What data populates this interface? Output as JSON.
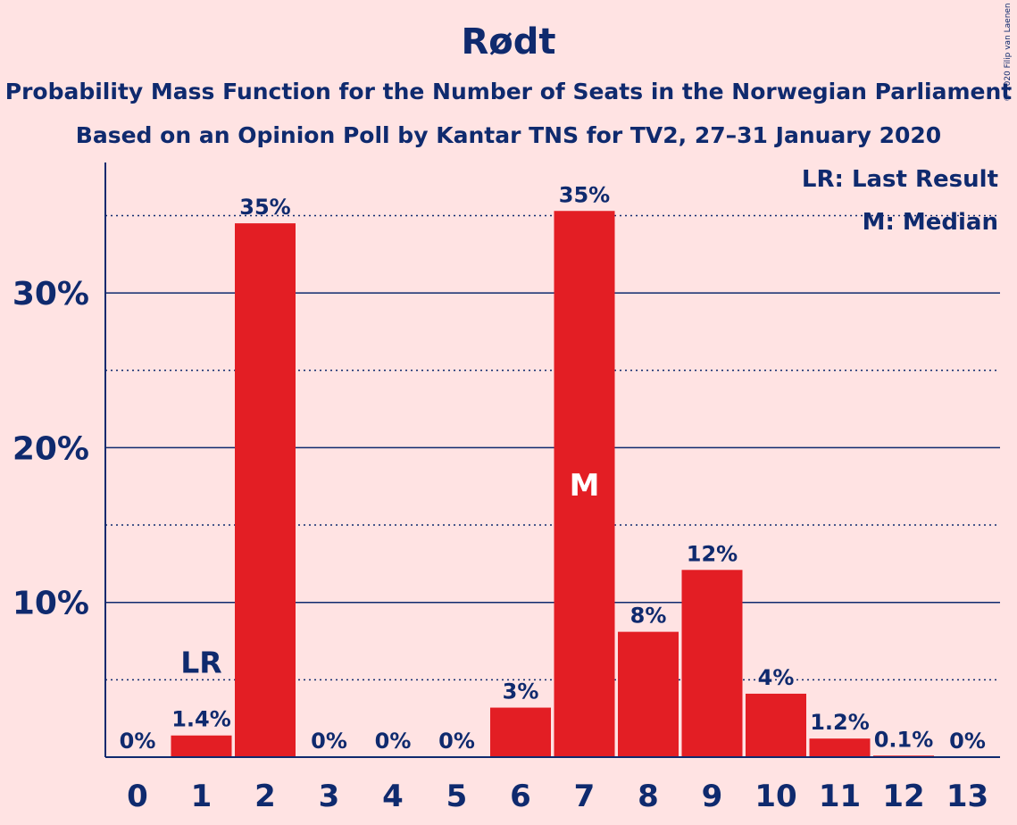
{
  "chart_data": {
    "type": "bar",
    "title": "Rødt",
    "subtitle_lines": [
      "Probability Mass Function for the Number of Seats in the Norwegian Parliament",
      "Based on an Opinion Poll by Kantar TNS for TV2, 27–31 January 2020"
    ],
    "copyright": "© 2020 Filip van Laenen",
    "categories": [
      "0",
      "1",
      "2",
      "3",
      "4",
      "5",
      "6",
      "7",
      "8",
      "9",
      "10",
      "11",
      "12",
      "13"
    ],
    "values": [
      0,
      1.4,
      34.5,
      0,
      0,
      0,
      3.2,
      35.3,
      8.1,
      12.1,
      4.1,
      1.2,
      0.1,
      0
    ],
    "value_labels": [
      "0%",
      "1.4%",
      "35%",
      "0%",
      "0%",
      "0%",
      "3%",
      "35%",
      "8%",
      "12%",
      "4%",
      "1.2%",
      "0.1%",
      "0%"
    ],
    "y_ticks": [
      10,
      20,
      30
    ],
    "y_tick_labels": [
      "10%",
      "20%",
      "30%"
    ],
    "y_minor_gridlines": [
      5,
      15,
      25,
      35
    ],
    "ylim": [
      0,
      38.5
    ],
    "xlabel": "",
    "ylabel": "",
    "last_result": {
      "index": 1,
      "label": "LR"
    },
    "median": {
      "index": 7,
      "label": "M"
    },
    "legend": [
      "LR: Last Result",
      "M: Median"
    ],
    "legend_position": "top-right",
    "colors": {
      "bar": "#e31e24",
      "text": "#0f2a6e",
      "background": "#ffe3e3"
    }
  }
}
